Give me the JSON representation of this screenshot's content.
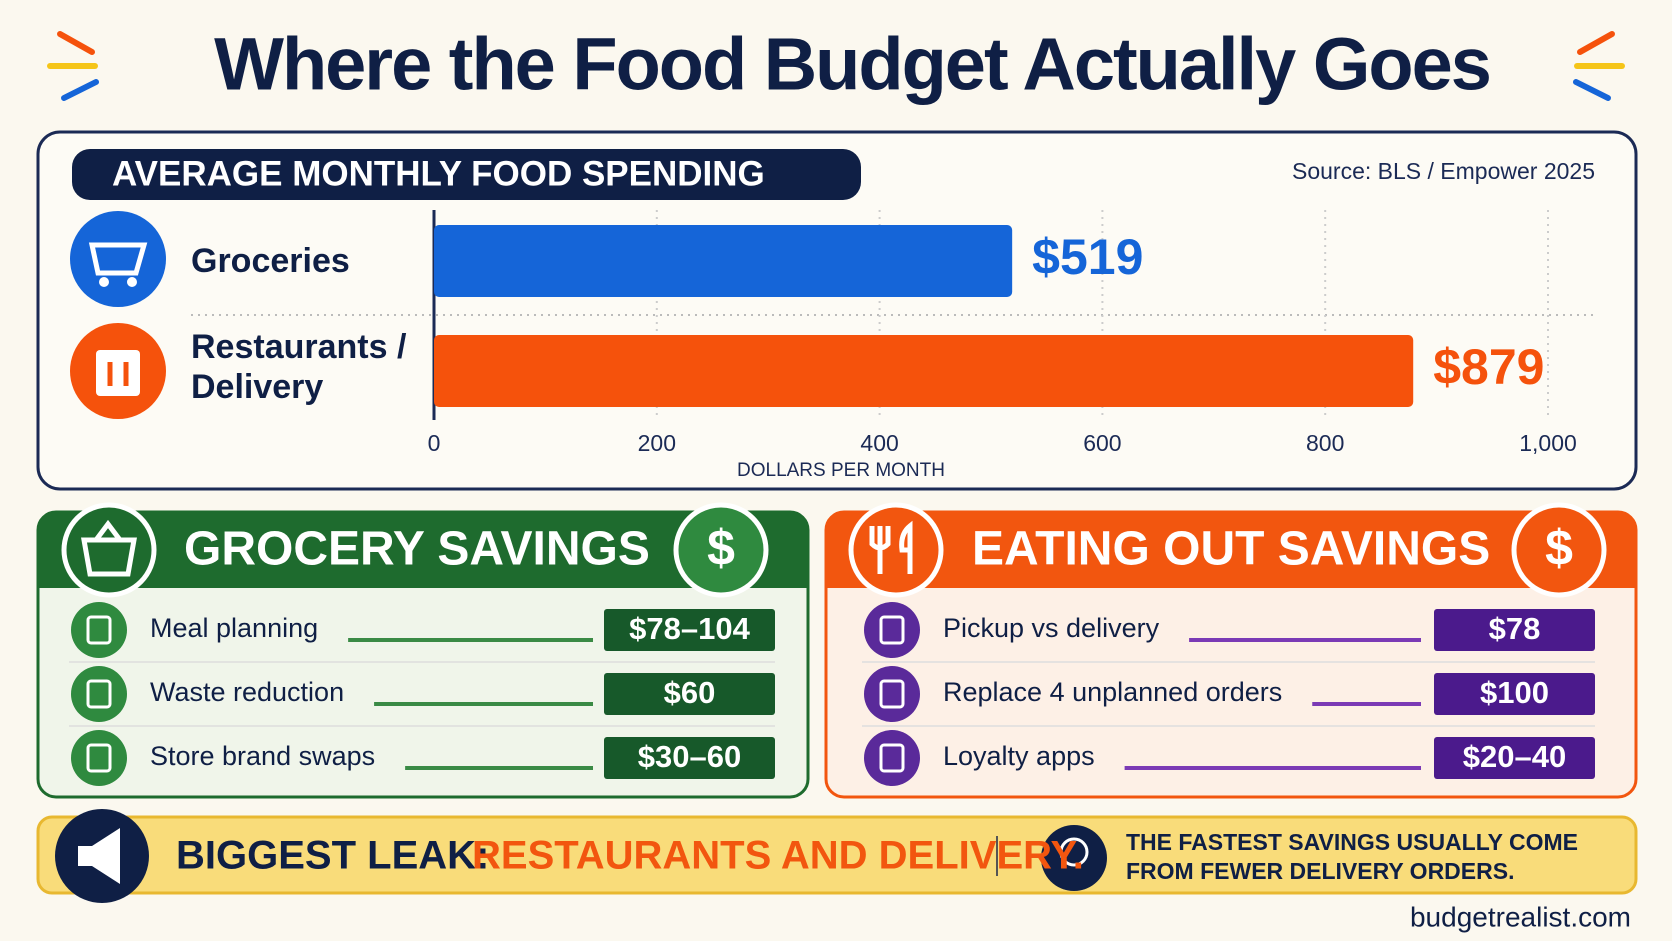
{
  "title": "Where the Food Budget Actually Goes",
  "chart_data": {
    "type": "bar",
    "orientation": "horizontal",
    "title": "AVERAGE MONTHLY FOOD SPENDING",
    "source": "Source: BLS / Empower 2025",
    "categories": [
      "Groceries",
      "Restaurants / Delivery"
    ],
    "values": [
      519,
      879
    ],
    "value_labels": [
      "$519",
      "$879"
    ],
    "colors": [
      "#1565d8",
      "#f5520c"
    ],
    "xlim": [
      0,
      1000
    ],
    "xticks": [
      0,
      200,
      400,
      600,
      800,
      {
        "value": 1000,
        "label": "1,000"
      }
    ],
    "xlabel": "DOLLARS PER MONTH",
    "grid": true
  },
  "grocery_savings": {
    "title": "GROCERY SAVINGS",
    "badge": "$",
    "items": [
      {
        "label": "Meal planning",
        "amount": "$78–104"
      },
      {
        "label": "Waste reduction",
        "amount": "$60"
      },
      {
        "label": "Store brand swaps",
        "amount": "$30–60"
      }
    ]
  },
  "eating_out_savings": {
    "title": "EATING OUT SAVINGS",
    "badge": "$",
    "items": [
      {
        "label": "Pickup vs delivery",
        "amount": "$78"
      },
      {
        "label": "Replace 4 unplanned orders",
        "amount": "$100"
      },
      {
        "label": "Loyalty apps",
        "amount": "$20–40"
      }
    ]
  },
  "footer": {
    "leak_label": "BIGGEST LEAK:",
    "leak_value": "RESTAURANTS AND DELIVERY.",
    "tip": "THE FASTEST SAVINGS USUALLY COME FROM FEWER DELIVERY ORDERS.",
    "site": "budgetrealist.com"
  }
}
